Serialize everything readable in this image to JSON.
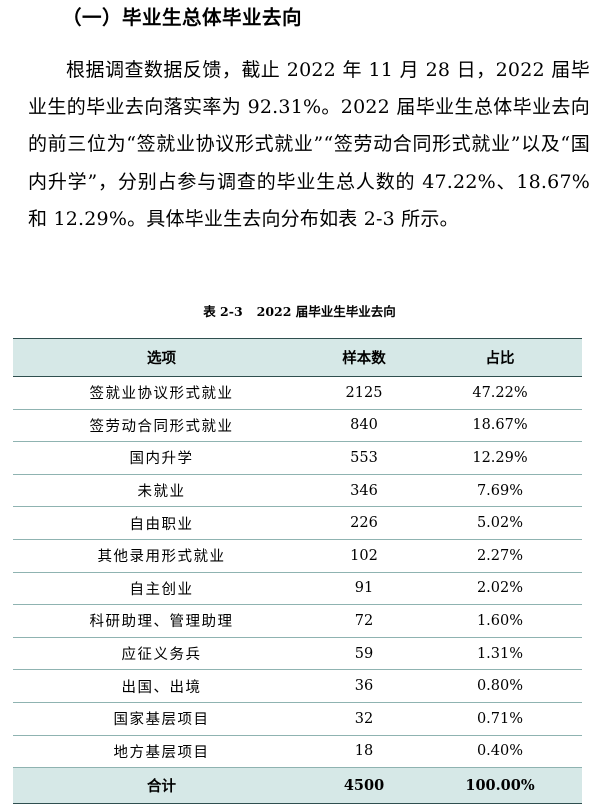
{
  "section": {
    "heading": "（一）毕业生总体毕业去向"
  },
  "body_text": "根据调查数据反馈，截止 2022 年 11 月 28 日，2022 届毕业生的毕业去向落实率为 92.31%。2022 届毕业生总体毕业去向的前三位为“签就业协议形式就业”“签劳动合同形式就业”以及“国内升学”，分别占参与调查的毕业生总人数的 47.22%、18.67%和 12.29%。具体毕业生去向分布如表 2-3 所示。",
  "table": {
    "caption_number": "表 2-3",
    "caption_title": "2022 届毕业生毕业去向",
    "headers": [
      "选项",
      "样本数",
      "占比"
    ],
    "rows": [
      [
        "签就业协议形式就业",
        "2125",
        "47.22%"
      ],
      [
        "签劳动合同形式就业",
        "840",
        "18.67%"
      ],
      [
        "国内升学",
        "553",
        "12.29%"
      ],
      [
        "未就业",
        "346",
        "7.69%"
      ],
      [
        "自由职业",
        "226",
        "5.02%"
      ],
      [
        "其他录用形式就业",
        "102",
        "2.27%"
      ],
      [
        "自主创业",
        "91",
        "2.02%"
      ],
      [
        "科研助理、管理助理",
        "72",
        "1.60%"
      ],
      [
        "应征义务兵",
        "59",
        "1.31%"
      ],
      [
        "出国、出境",
        "36",
        "0.80%"
      ],
      [
        "国家基层项目",
        "32",
        "0.71%"
      ],
      [
        "地方基层项目",
        "18",
        "0.40%"
      ]
    ],
    "total": [
      "合计",
      "4500",
      "100.00%"
    ]
  },
  "colors": {
    "header_fill": "#d6e8e7",
    "rule_dark": "#2f4f4f",
    "rule_light": "#8fb3b1"
  }
}
